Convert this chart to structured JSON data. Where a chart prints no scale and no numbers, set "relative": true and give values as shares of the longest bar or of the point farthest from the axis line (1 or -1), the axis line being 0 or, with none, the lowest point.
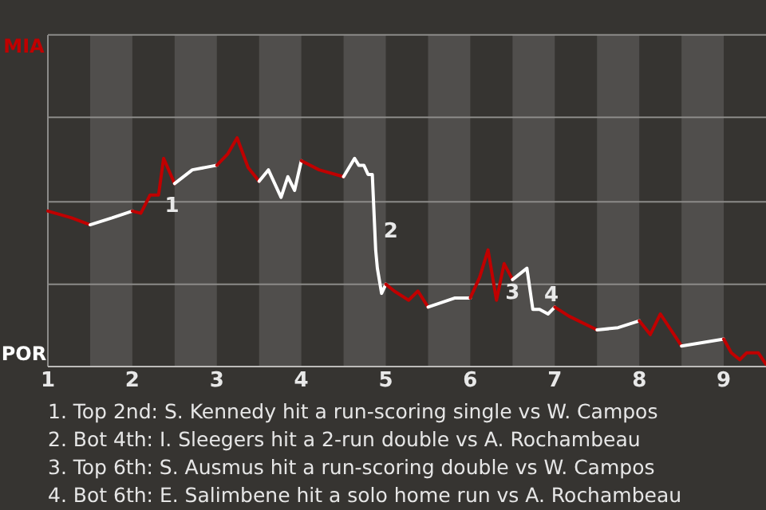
{
  "chart_data": {
    "type": "line",
    "relative": true,
    "xlim": [
      1,
      9.5
    ],
    "xticks": [
      1,
      2,
      3,
      4,
      5,
      6,
      7,
      8,
      9
    ],
    "ref_lines": [
      {
        "axis": "y",
        "value": 0.36,
        "color": "#8c8b89"
      },
      {
        "axis": "y",
        "value": 0.72,
        "color": "#8c8b89"
      },
      {
        "axis": "y",
        "value": 1.09,
        "color": "#8c8b89"
      },
      {
        "axis": "y",
        "value": 1.45,
        "color": "#8c8b89"
      }
    ],
    "bands": [
      {
        "axis": "x",
        "from": 1.5,
        "to": 2,
        "color": "#504e4c"
      },
      {
        "axis": "x",
        "from": 2.5,
        "to": 3,
        "color": "#504e4c"
      },
      {
        "axis": "x",
        "from": 3.5,
        "to": 4,
        "color": "#504e4c"
      },
      {
        "axis": "x",
        "from": 4.5,
        "to": 5,
        "color": "#504e4c"
      },
      {
        "axis": "x",
        "from": 5.5,
        "to": 6,
        "color": "#504e4c"
      },
      {
        "axis": "x",
        "from": 6.5,
        "to": 7,
        "color": "#504e4c"
      },
      {
        "axis": "x",
        "from": 7.5,
        "to": 8,
        "color": "#504e4c"
      },
      {
        "axis": "x",
        "from": 8.5,
        "to": 9,
        "color": "#504e4c"
      }
    ],
    "series": [
      {
        "color": "#c00000",
        "x": [
          1,
          1.28,
          1.5
        ],
        "values": [
          0.68,
          0.65,
          0.62
        ]
      },
      {
        "color": "#ffffff",
        "x": [
          1.5,
          1.76,
          2
        ],
        "values": [
          0.62,
          0.65,
          0.68
        ]
      },
      {
        "color": "#c00000",
        "x": [
          2,
          2.1,
          2.21,
          2.31,
          2.37,
          2.5
        ],
        "values": [
          0.68,
          0.67,
          0.75,
          0.75,
          0.91,
          0.8
        ]
      },
      {
        "color": "#ffffff",
        "x": [
          2.5,
          2.71,
          3
        ],
        "values": [
          0.8,
          0.86,
          0.88
        ]
      },
      {
        "color": "#c00000",
        "x": [
          3,
          3.13,
          3.24,
          3.37,
          3.5
        ],
        "values": [
          0.88,
          0.93,
          1,
          0.87,
          0.81
        ]
      },
      {
        "color": "#ffffff",
        "x": [
          3.5,
          3.61,
          3.76,
          3.84,
          3.92,
          4
        ],
        "values": [
          0.81,
          0.86,
          0.74,
          0.83,
          0.77,
          0.9
        ]
      },
      {
        "color": "#c00000",
        "x": [
          4,
          4.21,
          4.5
        ],
        "values": [
          0.9,
          0.86,
          0.83
        ]
      },
      {
        "color": "#ffffff",
        "x": [
          4.5,
          4.63,
          4.68,
          4.74,
          4.79,
          4.84,
          4.88,
          4.9,
          4.95,
          5
        ],
        "values": [
          0.83,
          0.91,
          0.88,
          0.88,
          0.84,
          0.84,
          0.51,
          0.43,
          0.32,
          0.36
        ]
      },
      {
        "color": "#c00000",
        "x": [
          5,
          5.1,
          5.27,
          5.38,
          5.5
        ],
        "values": [
          0.36,
          0.33,
          0.29,
          0.33,
          0.26
        ]
      },
      {
        "color": "#ffffff",
        "x": [
          5.5,
          5.82,
          6
        ],
        "values": [
          0.26,
          0.3,
          0.3
        ]
      },
      {
        "color": "#c00000",
        "x": [
          6,
          6.11,
          6.21,
          6.31,
          6.4,
          6.5
        ],
        "values": [
          0.3,
          0.39,
          0.51,
          0.29,
          0.45,
          0.38
        ]
      },
      {
        "color": "#ffffff",
        "x": [
          6.5,
          6.67,
          6.74,
          6.82,
          6.92,
          7
        ],
        "values": [
          0.38,
          0.43,
          0.25,
          0.25,
          0.23,
          0.26
        ]
      },
      {
        "color": "#c00000",
        "x": [
          7,
          7.17,
          7.5
        ],
        "values": [
          0.26,
          0.22,
          0.16
        ]
      },
      {
        "color": "#ffffff",
        "x": [
          7.5,
          7.75,
          8
        ],
        "values": [
          0.16,
          0.17,
          0.2
        ]
      },
      {
        "color": "#c00000",
        "x": [
          8,
          8.13,
          8.25,
          8.5
        ],
        "values": [
          0.2,
          0.14,
          0.23,
          0.09
        ]
      },
      {
        "color": "#ffffff",
        "x": [
          8.5,
          9
        ],
        "values": [
          0.09,
          0.12
        ]
      },
      {
        "color": "#c00000",
        "x": [
          9,
          9.09,
          9.19,
          9.27,
          9.41,
          9.5
        ],
        "values": [
          0.12,
          0.06,
          0.03,
          0.06,
          0.06,
          0.01
        ]
      }
    ],
    "annotations": [
      "MIA",
      "POR",
      {
        "text": "1",
        "x": 2.47,
        "y": 0.7
      },
      {
        "text": "2",
        "x": 5.06,
        "y": 0.59
      },
      {
        "text": "3",
        "x": 6.5,
        "y": 0.32
      },
      {
        "text": "4",
        "x": 6.96,
        "y": 0.31
      },
      "1. Top 2nd: S. Kennedy hit a run-scoring single vs W. Campos",
      "2. Bot 4th: I. Sleegers hit a 2-run double vs A. Rochambeau",
      "3. Top 6th: S. Ausmus hit a run-scoring double vs W. Campos",
      "4. Bot 6th: E. Salimbene hit a solo home run vs A. Rochambeau"
    ]
  }
}
